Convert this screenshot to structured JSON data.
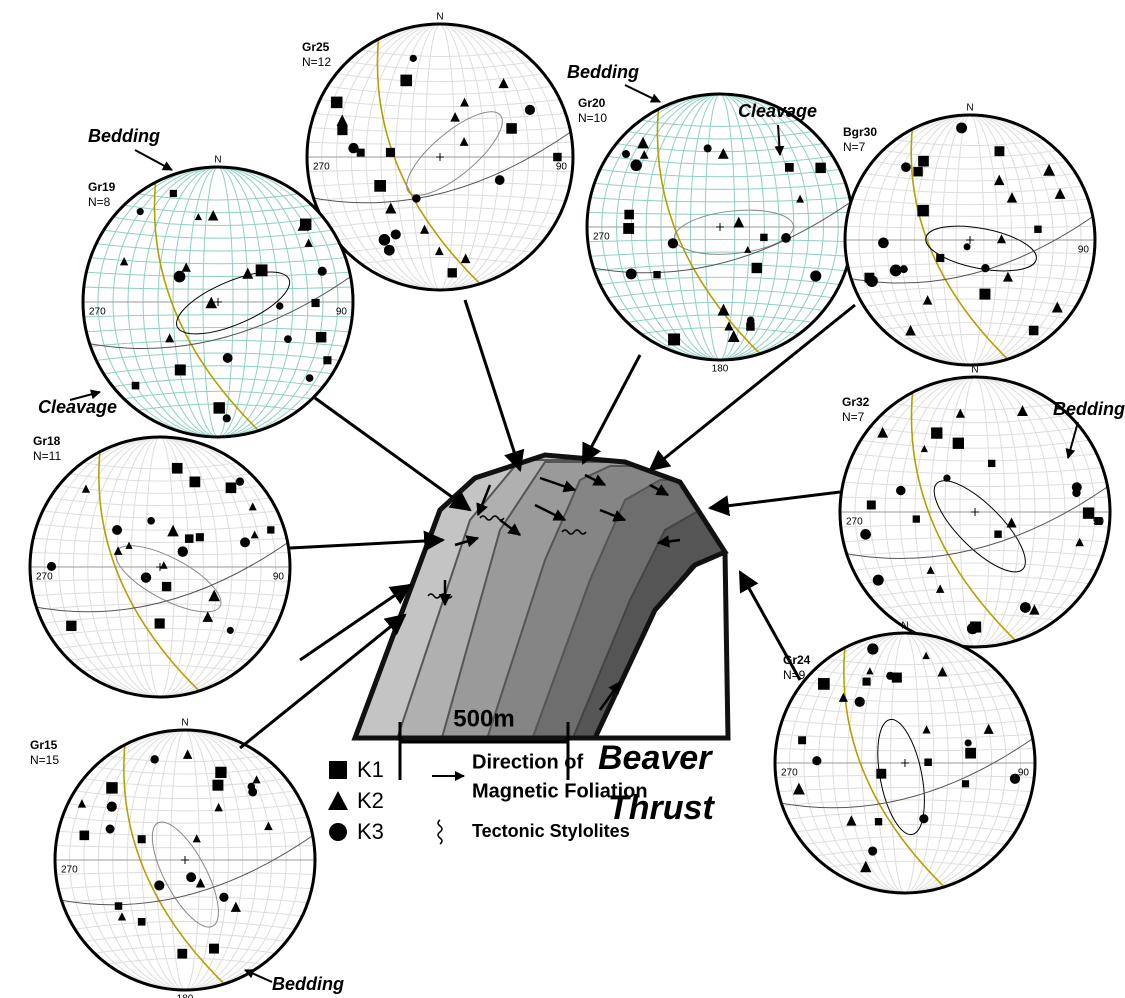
{
  "nets": [
    {
      "name": "Gr25",
      "count": "N=12",
      "directions": {
        "north": "N",
        "west": "270",
        "east": "90"
      }
    },
    {
      "name": "Gr19",
      "count": "N=8",
      "directions": {
        "north": "N",
        "west": "270",
        "east": "90"
      }
    },
    {
      "name": "Gr20",
      "count": "N=10",
      "directions": {
        "west": "270",
        "south": "180"
      }
    },
    {
      "name": "Bgr30",
      "count": "N=7",
      "directions": {
        "north": "N",
        "east": "90"
      }
    },
    {
      "name": "Gr18",
      "count": "N=11",
      "directions": {
        "west": "270",
        "east": "90"
      }
    },
    {
      "name": "Gr32",
      "count": "N=7",
      "directions": {
        "north": "N",
        "west": "270",
        "east": "90"
      }
    },
    {
      "name": "Gr15",
      "count": "N=15",
      "directions": {
        "north": "N",
        "west": "270",
        "south": "180"
      }
    },
    {
      "name": "Gr24",
      "count": "N=9",
      "directions": {
        "north": "N",
        "west": "270",
        "east": "90"
      }
    }
  ],
  "annotations": [
    "Bedding",
    "Cleavage",
    "Bedding",
    "Cleavage",
    "Bedding",
    "Bedding"
  ],
  "legend": {
    "items": [
      "K1",
      "K2",
      "K3"
    ],
    "foliation": [
      "Direction of",
      "Magnetic Foliation"
    ],
    "stylolites": "Tectonic Stylolites"
  },
  "scale": "500m",
  "title": [
    "Beaver",
    "Thrust"
  ]
}
